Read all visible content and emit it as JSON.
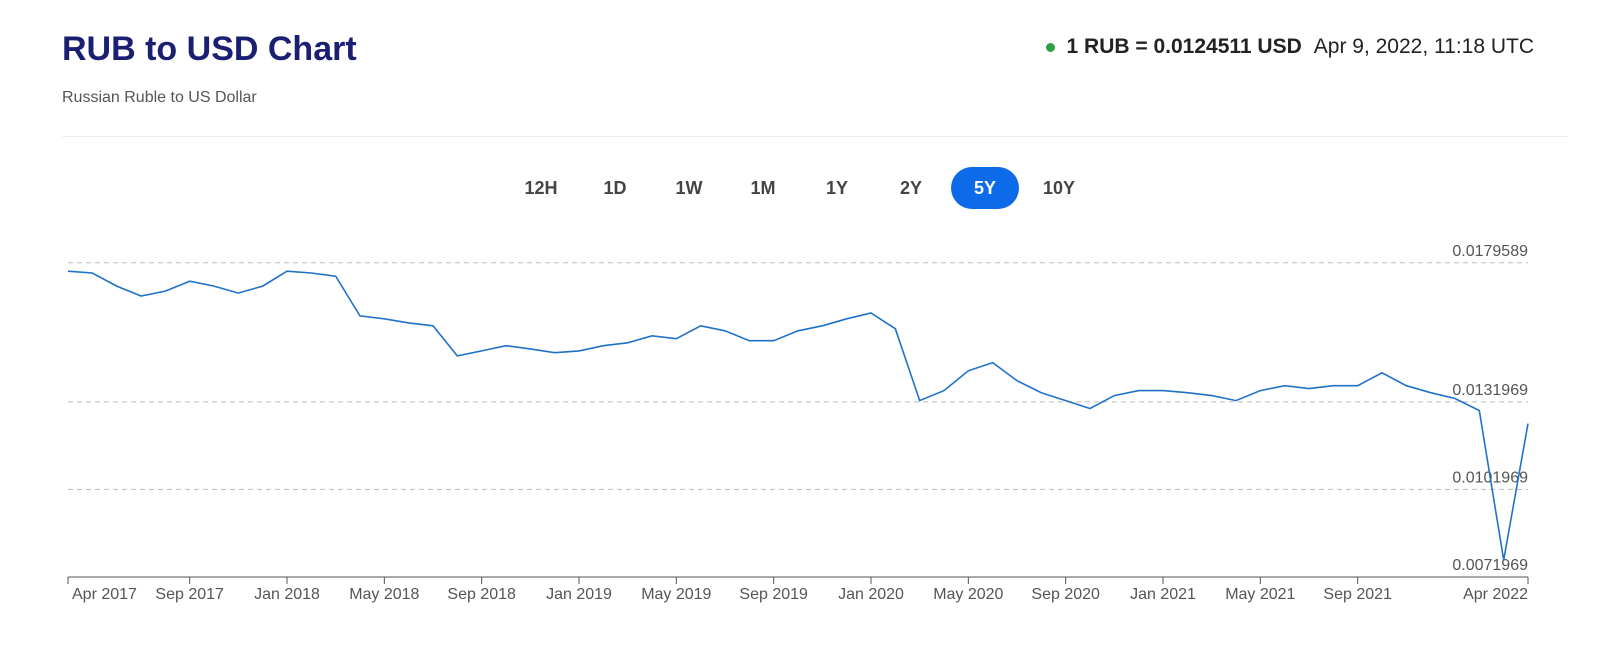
{
  "header": {
    "title": "RUB to USD Chart",
    "subtitle": "Russian Ruble to US Dollar",
    "rate": "1 RUB = 0.0124511 USD",
    "timestamp": "Apr 9, 2022, 11:18 UTC"
  },
  "range_buttons": {
    "options": [
      "12H",
      "1D",
      "1W",
      "1M",
      "1Y",
      "2Y",
      "5Y",
      "10Y"
    ],
    "selected": "5Y"
  },
  "chart_data": {
    "type": "line",
    "color": "#1f72c8",
    "grid": true,
    "x": [
      "2017-04",
      "2017-05",
      "2017-06",
      "2017-07",
      "2017-08",
      "2017-09",
      "2017-10",
      "2017-11",
      "2017-12",
      "2018-01",
      "2018-02",
      "2018-03",
      "2018-04",
      "2018-05",
      "2018-06",
      "2018-07",
      "2018-08",
      "2018-09",
      "2018-10",
      "2018-11",
      "2018-12",
      "2019-01",
      "2019-02",
      "2019-03",
      "2019-04",
      "2019-05",
      "2019-06",
      "2019-07",
      "2019-08",
      "2019-09",
      "2019-10",
      "2019-11",
      "2019-12",
      "2020-01",
      "2020-02",
      "2020-03",
      "2020-04",
      "2020-05",
      "2020-06",
      "2020-07",
      "2020-08",
      "2020-09",
      "2020-10",
      "2020-11",
      "2020-12",
      "2021-01",
      "2021-02",
      "2021-03",
      "2021-04",
      "2021-05",
      "2021-06",
      "2021-07",
      "2021-08",
      "2021-09",
      "2021-10",
      "2021-11",
      "2021-12",
      "2022-01",
      "2022-02",
      "2022-03",
      "2022-04"
    ],
    "values": [
      0.01767,
      0.01761,
      0.01716,
      0.01682,
      0.01699,
      0.01733,
      0.01716,
      0.01692,
      0.01716,
      0.01767,
      0.01761,
      0.0175,
      0.01614,
      0.01604,
      0.0159,
      0.0158,
      0.01477,
      0.01494,
      0.01512,
      0.01501,
      0.01488,
      0.01494,
      0.01512,
      0.01522,
      0.01546,
      0.01536,
      0.0158,
      0.01563,
      0.01529,
      0.01529,
      0.01563,
      0.0158,
      0.01604,
      0.01624,
      0.0157,
      0.01324,
      0.01358,
      0.01426,
      0.01454,
      0.01392,
      0.01351,
      0.01324,
      0.01297,
      0.01341,
      0.01358,
      0.01358,
      0.01351,
      0.01341,
      0.01324,
      0.01358,
      0.01375,
      0.01365,
      0.01375,
      0.01375,
      0.01419,
      0.01375,
      0.01351,
      0.01331,
      0.0129,
      0.00778,
      0.0124511
    ],
    "xlim": [
      "2017-04",
      "2022-04"
    ],
    "xticks": [
      {
        "value": "2017-04",
        "label": "Apr 2017"
      },
      {
        "value": "2017-09",
        "label": "Sep 2017"
      },
      {
        "value": "2018-01",
        "label": "Jan 2018"
      },
      {
        "value": "2018-05",
        "label": "May 2018"
      },
      {
        "value": "2018-09",
        "label": "Sep 2018"
      },
      {
        "value": "2019-01",
        "label": "Jan 2019"
      },
      {
        "value": "2019-05",
        "label": "May 2019"
      },
      {
        "value": "2019-09",
        "label": "Sep 2019"
      },
      {
        "value": "2020-01",
        "label": "Jan 2020"
      },
      {
        "value": "2020-05",
        "label": "May 2020"
      },
      {
        "value": "2020-09",
        "label": "Sep 2020"
      },
      {
        "value": "2021-01",
        "label": "Jan 2021"
      },
      {
        "value": "2021-05",
        "label": "May 2021"
      },
      {
        "value": "2021-09",
        "label": "Sep 2021"
      },
      {
        "value": "2022-04",
        "label": "Apr 2022"
      }
    ],
    "ylim": [
      0.0071969,
      0.0185
    ],
    "yticks": [
      0.0071969,
      0.0101969,
      0.0131969,
      0.0179589
    ]
  }
}
